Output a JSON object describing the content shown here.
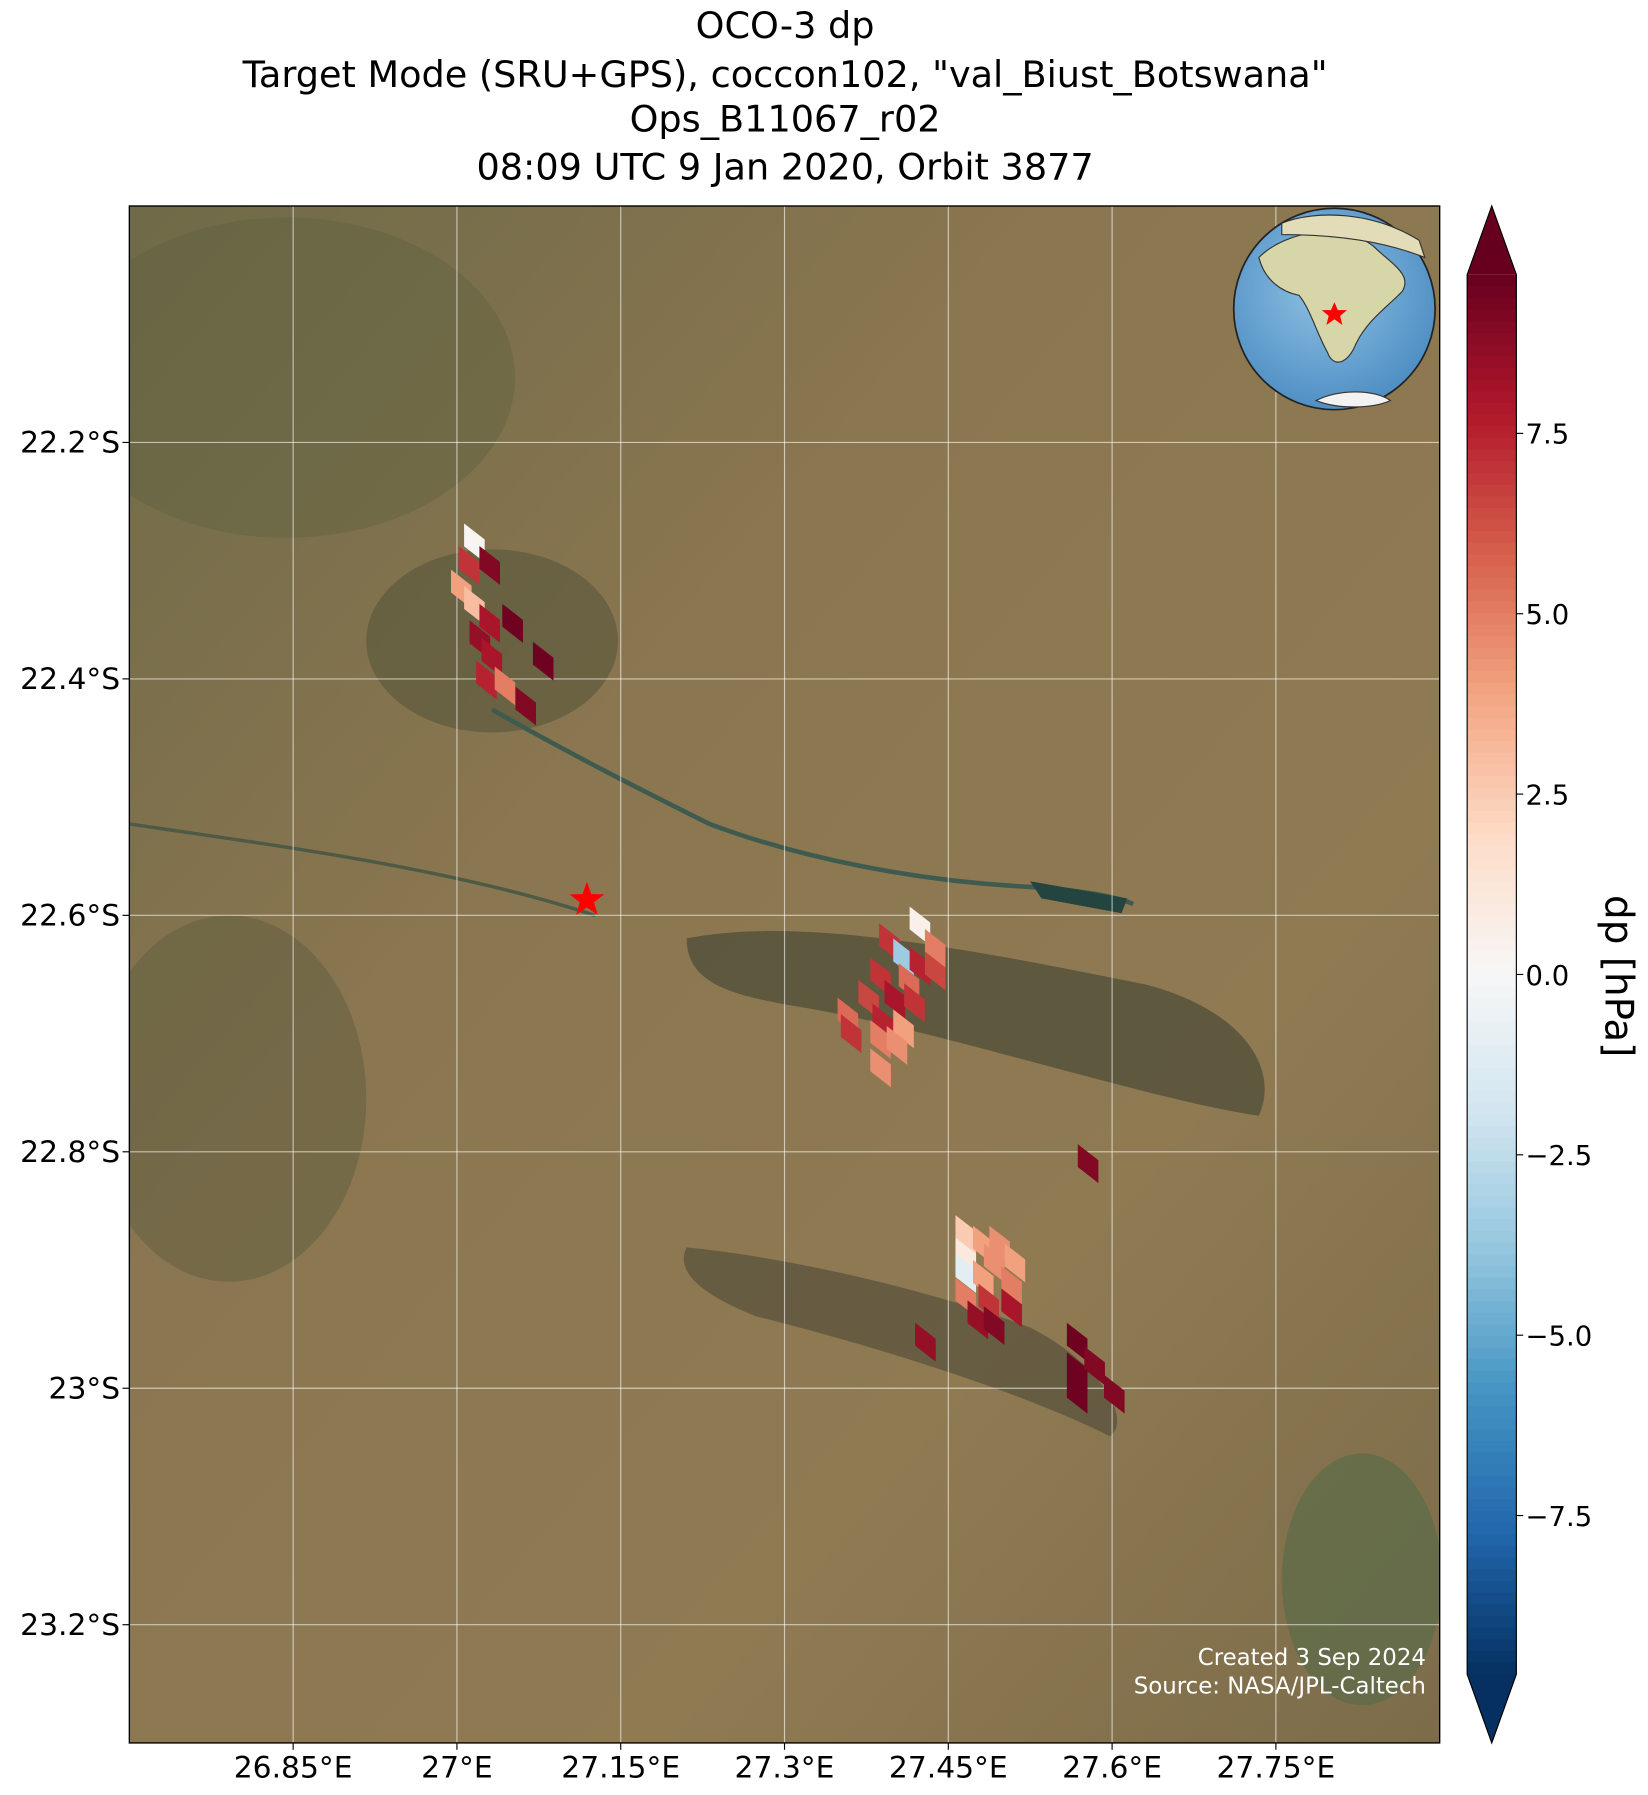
{
  "chart_data": {
    "type": "map",
    "title": [
      "OCO-3 dp",
      "Target Mode (SRU+GPS), coccon102, \"val_Biust_Botswana\"",
      "Ops_B11067_r02",
      "08:09 UTC 9 Jan 2020, Orbit 3877"
    ],
    "xlim": [
      26.7,
      27.9
    ],
    "ylim": [
      -23.3,
      -22.0
    ],
    "xticks": [
      {
        "value": 26.85,
        "label": "26.85°E"
      },
      {
        "value": 27.0,
        "label": "27°E"
      },
      {
        "value": 27.15,
        "label": "27.15°E"
      },
      {
        "value": 27.3,
        "label": "27.3°E"
      },
      {
        "value": 27.45,
        "label": "27.45°E"
      },
      {
        "value": 27.6,
        "label": "27.6°E"
      },
      {
        "value": 27.75,
        "label": "27.75°E"
      }
    ],
    "yticks": [
      {
        "value": -22.2,
        "label": "22.2°S"
      },
      {
        "value": -22.4,
        "label": "22.4°S"
      },
      {
        "value": -22.6,
        "label": "22.6°S"
      },
      {
        "value": -22.8,
        "label": "22.8°S"
      },
      {
        "value": -23.0,
        "label": "23°S"
      },
      {
        "value": -23.2,
        "label": "23.2°S"
      }
    ],
    "grid": true,
    "colormap": "RdBu_r",
    "clim": [
      -9.7,
      9.7
    ],
    "cticks": [
      {
        "value": -7.5,
        "label": "−7.5"
      },
      {
        "value": -5.0,
        "label": "−5.0"
      },
      {
        "value": -2.5,
        "label": "−2.5"
      },
      {
        "value": 0.0,
        "label": "0.0"
      },
      2.5,
      {
        "value": 5.0,
        "label": "5.0"
      },
      7.5
    ],
    "colorbar_label": "dp [hPa]",
    "site": [
      27.119,
      -22.587
    ],
    "x": [
      27.016,
      27.011,
      27.03,
      27.004,
      27.016,
      27.03,
      27.051,
      27.021,
      27.032,
      27.079,
      27.027,
      27.044,
      27.063,
      27.424,
      27.396,
      27.438,
      27.409,
      27.424,
      27.438,
      27.388,
      27.414,
      27.401,
      27.419,
      27.377,
      27.358,
      27.39,
      27.409,
      27.361,
      27.388,
      27.403,
      27.388,
      27.466,
      27.482,
      27.497,
      27.466,
      27.492,
      27.511,
      27.466,
      27.482,
      27.508,
      27.466,
      27.487,
      27.508,
      27.477,
      27.492,
      27.429,
      27.578,
      27.568,
      27.568,
      27.584,
      27.602,
      27.568
    ],
    "y": [
      -22.285,
      -22.304,
      -22.304,
      -22.324,
      -22.338,
      -22.353,
      -22.353,
      -22.367,
      -22.382,
      -22.385,
      -22.401,
      -22.406,
      -22.423,
      -22.609,
      -22.623,
      -22.628,
      -22.636,
      -22.643,
      -22.647,
      -22.652,
      -22.657,
      -22.671,
      -22.674,
      -22.671,
      -22.686,
      -22.691,
      -22.696,
      -22.7,
      -22.705,
      -22.71,
      -22.729,
      -22.87,
      -22.879,
      -22.879,
      -22.889,
      -22.894,
      -22.894,
      -22.903,
      -22.908,
      -22.913,
      -22.923,
      -22.928,
      -22.932,
      -22.942,
      -22.947,
      -22.961,
      -22.81,
      -22.961,
      -22.986,
      -22.981,
      -23.005,
      -23.005
    ],
    "values": [
      0.2,
      7.0,
      9.0,
      4.0,
      3.0,
      8.0,
      9.5,
      8.5,
      8.0,
      9.5,
      7.5,
      5.0,
      9.0,
      0.5,
      7.0,
      5.0,
      -3.5,
      7.5,
      6.5,
      7.0,
      5.5,
      8.0,
      7.0,
      6.5,
      5.5,
      7.5,
      4.0,
      7.0,
      5.0,
      4.5,
      4.5,
      2.5,
      4.0,
      4.5,
      1.0,
      4.5,
      4.0,
      -1.0,
      4.0,
      5.0,
      5.0,
      7.0,
      8.0,
      8.5,
      9.0,
      8.5,
      9.0,
      9.5,
      9.5,
      9.0,
      9.0,
      9.5
    ],
    "credits": [
      "Created 3 Sep 2024",
      "Source: NASA/JPL-Caltech"
    ]
  }
}
